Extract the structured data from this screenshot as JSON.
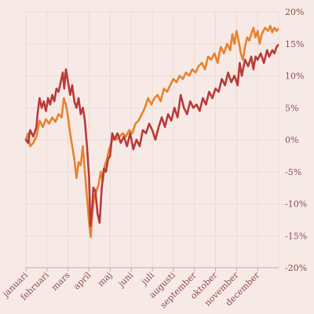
{
  "chart_data": {
    "type": "line",
    "title": "",
    "xlabel": "",
    "ylabel": "",
    "ylim": [
      -20,
      20
    ],
    "y_ticks": [
      20,
      15,
      10,
      5,
      0,
      -5,
      -10,
      -15,
      -20
    ],
    "y_tick_labels": [
      "20%",
      "15%",
      "10%",
      "5%",
      "0%",
      "-5%",
      "-10%",
      "-15%",
      "-20%"
    ],
    "y_axis_position": "right",
    "grid": true,
    "x_tick_labels": [
      "januari",
      "februari",
      "mars",
      "april",
      "maj",
      "juni",
      "juli",
      "augusti",
      "september",
      "oktober",
      "november",
      "december"
    ],
    "x_tick_positions": [
      0,
      1,
      2,
      3,
      4,
      5,
      6,
      7,
      8,
      9,
      10,
      11
    ],
    "xlim": [
      0,
      12
    ],
    "series": [
      {
        "color": "#e8822f",
        "points": [
          [
            0.0,
            0.0
          ],
          [
            0.1,
            1.0
          ],
          [
            0.2,
            -1.0
          ],
          [
            0.35,
            -0.5
          ],
          [
            0.5,
            0.5
          ],
          [
            0.65,
            3.0
          ],
          [
            0.8,
            2.0
          ],
          [
            0.95,
            3.2
          ],
          [
            1.1,
            2.5
          ],
          [
            1.25,
            3.5
          ],
          [
            1.4,
            2.8
          ],
          [
            1.55,
            4.0
          ],
          [
            1.7,
            3.5
          ],
          [
            1.8,
            6.5
          ],
          [
            1.9,
            5.5
          ],
          [
            2.0,
            3.5
          ],
          [
            2.1,
            1.0
          ],
          [
            2.2,
            -1.0
          ],
          [
            2.3,
            -3.0
          ],
          [
            2.4,
            -6.0
          ],
          [
            2.5,
            -3.5
          ],
          [
            2.6,
            -4.0
          ],
          [
            2.7,
            -1.0
          ],
          [
            2.8,
            -5.0
          ],
          [
            2.9,
            -9.0
          ],
          [
            3.0,
            -13.0
          ],
          [
            3.08,
            -15.2
          ],
          [
            3.15,
            -11.5
          ],
          [
            3.25,
            -9.0
          ],
          [
            3.35,
            -8.0
          ],
          [
            3.45,
            -7.0
          ],
          [
            3.55,
            -5.0
          ],
          [
            3.65,
            -6.5
          ],
          [
            3.75,
            -4.0
          ],
          [
            3.85,
            -3.0
          ],
          [
            3.95,
            -1.5
          ],
          [
            4.05,
            -0.5
          ],
          [
            4.15,
            0.5
          ],
          [
            4.3,
            0.0
          ],
          [
            4.45,
            0.5
          ],
          [
            4.6,
            1.0
          ],
          [
            4.75,
            0.5
          ],
          [
            4.9,
            1.5
          ],
          [
            5.05,
            1.0
          ],
          [
            5.2,
            2.5
          ],
          [
            5.35,
            3.0
          ],
          [
            5.5,
            4.0
          ],
          [
            5.65,
            5.0
          ],
          [
            5.8,
            6.5
          ],
          [
            5.95,
            5.5
          ],
          [
            6.1,
            6.5
          ],
          [
            6.25,
            7.0
          ],
          [
            6.4,
            6.0
          ],
          [
            6.55,
            8.0
          ],
          [
            6.7,
            7.5
          ],
          [
            6.85,
            8.5
          ],
          [
            7.0,
            9.5
          ],
          [
            7.15,
            9.0
          ],
          [
            7.3,
            10.0
          ],
          [
            7.45,
            9.5
          ],
          [
            7.6,
            10.5
          ],
          [
            7.75,
            10.0
          ],
          [
            7.9,
            11.0
          ],
          [
            8.05,
            10.5
          ],
          [
            8.2,
            11.5
          ],
          [
            8.35,
            12.0
          ],
          [
            8.5,
            11.0
          ],
          [
            8.65,
            13.0
          ],
          [
            8.8,
            12.5
          ],
          [
            8.95,
            13.5
          ],
          [
            9.1,
            12.0
          ],
          [
            9.25,
            14.5
          ],
          [
            9.4,
            13.5
          ],
          [
            9.55,
            15.0
          ],
          [
            9.7,
            14.0
          ],
          [
            9.8,
            16.5
          ],
          [
            9.9,
            15.0
          ],
          [
            10.0,
            17.0
          ],
          [
            10.1,
            15.5
          ],
          [
            10.2,
            13.5
          ],
          [
            10.3,
            12.5
          ],
          [
            10.4,
            14.5
          ],
          [
            10.5,
            16.0
          ],
          [
            10.6,
            15.5
          ],
          [
            10.7,
            16.5
          ],
          [
            10.8,
            17.5
          ],
          [
            10.9,
            16.0
          ],
          [
            11.0,
            17.0
          ],
          [
            11.1,
            15.0
          ],
          [
            11.2,
            16.5
          ],
          [
            11.35,
            17.5
          ],
          [
            11.5,
            17.0
          ],
          [
            11.6,
            17.8
          ],
          [
            11.7,
            16.8
          ],
          [
            11.8,
            17.5
          ],
          [
            11.9,
            17.0
          ],
          [
            11.97,
            17.3
          ]
        ]
      },
      {
        "color": "#b93a3a",
        "points": [
          [
            0.0,
            0.0
          ],
          [
            0.1,
            -0.5
          ],
          [
            0.2,
            1.5
          ],
          [
            0.35,
            0.5
          ],
          [
            0.5,
            2.0
          ],
          [
            0.55,
            4.0
          ],
          [
            0.65,
            6.5
          ],
          [
            0.75,
            5.0
          ],
          [
            0.85,
            6.0
          ],
          [
            0.95,
            4.5
          ],
          [
            1.05,
            6.5
          ],
          [
            1.15,
            5.5
          ],
          [
            1.25,
            7.0
          ],
          [
            1.35,
            6.0
          ],
          [
            1.45,
            8.0
          ],
          [
            1.55,
            7.5
          ],
          [
            1.65,
            9.0
          ],
          [
            1.75,
            10.5
          ],
          [
            1.82,
            8.0
          ],
          [
            1.9,
            11.0
          ],
          [
            2.0,
            9.0
          ],
          [
            2.1,
            7.0
          ],
          [
            2.2,
            8.5
          ],
          [
            2.3,
            6.0
          ],
          [
            2.4,
            5.0
          ],
          [
            2.5,
            6.5
          ],
          [
            2.6,
            4.0
          ],
          [
            2.7,
            5.0
          ],
          [
            2.8,
            3.0
          ],
          [
            2.9,
            -1.0
          ],
          [
            3.0,
            -6.0
          ],
          [
            3.06,
            -13.5
          ],
          [
            3.12,
            -12.0
          ],
          [
            3.2,
            -7.5
          ],
          [
            3.3,
            -8.0
          ],
          [
            3.4,
            -11.5
          ],
          [
            3.5,
            -13.0
          ],
          [
            3.6,
            -7.5
          ],
          [
            3.7,
            -4.5
          ],
          [
            3.8,
            -5.0
          ],
          [
            3.9,
            -3.0
          ],
          [
            4.0,
            -2.5
          ],
          [
            4.1,
            1.0
          ],
          [
            4.2,
            0.0
          ],
          [
            4.35,
            1.0
          ],
          [
            4.5,
            -0.5
          ],
          [
            4.65,
            0.5
          ],
          [
            4.8,
            -1.0
          ],
          [
            4.95,
            1.0
          ],
          [
            5.1,
            -1.5
          ],
          [
            5.25,
            0.0
          ],
          [
            5.4,
            -1.0
          ],
          [
            5.55,
            1.5
          ],
          [
            5.7,
            1.0
          ],
          [
            5.85,
            2.5
          ],
          [
            6.0,
            1.5
          ],
          [
            6.15,
            0.0
          ],
          [
            6.3,
            2.0
          ],
          [
            6.45,
            3.5
          ],
          [
            6.6,
            2.0
          ],
          [
            6.75,
            4.0
          ],
          [
            6.9,
            3.0
          ],
          [
            7.05,
            5.0
          ],
          [
            7.2,
            3.5
          ],
          [
            7.35,
            7.0
          ],
          [
            7.5,
            5.0
          ],
          [
            7.65,
            4.0
          ],
          [
            7.8,
            6.0
          ],
          [
            7.95,
            5.0
          ],
          [
            8.1,
            5.5
          ],
          [
            8.25,
            4.5
          ],
          [
            8.4,
            6.5
          ],
          [
            8.55,
            5.5
          ],
          [
            8.7,
            7.5
          ],
          [
            8.85,
            6.5
          ],
          [
            9.0,
            8.0
          ],
          [
            9.15,
            7.5
          ],
          [
            9.3,
            9.5
          ],
          [
            9.45,
            8.5
          ],
          [
            9.6,
            10.5
          ],
          [
            9.75,
            9.0
          ],
          [
            9.9,
            10.0
          ],
          [
            10.05,
            8.5
          ],
          [
            10.15,
            12.0
          ],
          [
            10.25,
            10.0
          ],
          [
            10.4,
            12.5
          ],
          [
            10.55,
            11.5
          ],
          [
            10.7,
            13.0
          ],
          [
            10.8,
            11.0
          ],
          [
            10.9,
            13.0
          ],
          [
            11.0,
            12.5
          ],
          [
            11.15,
            13.5
          ],
          [
            11.3,
            12.0
          ],
          [
            11.45,
            14.0
          ],
          [
            11.55,
            13.0
          ],
          [
            11.7,
            14.0
          ],
          [
            11.8,
            13.5
          ],
          [
            11.9,
            14.5
          ],
          [
            11.97,
            14.8
          ]
        ]
      }
    ]
  }
}
